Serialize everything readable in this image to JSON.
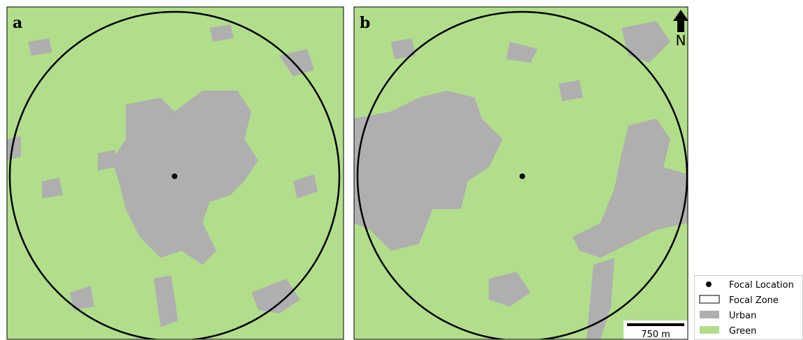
{
  "panels": [
    {
      "label": "a"
    },
    {
      "label": "b"
    }
  ],
  "north_arrow": {
    "label": "N"
  },
  "scale_bar": {
    "label": "750 m"
  },
  "legend": {
    "items": [
      {
        "label": "Focal Location"
      },
      {
        "label": "Focal Zone"
      },
      {
        "label": "Urban"
      },
      {
        "label": "Green"
      }
    ]
  }
}
